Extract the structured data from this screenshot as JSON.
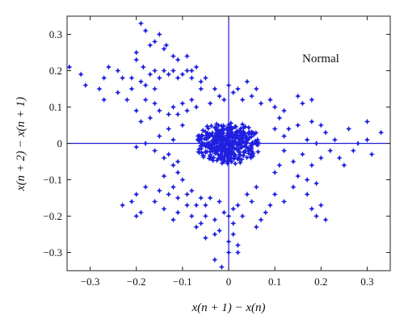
{
  "chart_data": {
    "type": "scatter",
    "title": "",
    "annotation": "Normal",
    "xlabel": "x(n + 1) − x(n)",
    "ylabel": "x(n + 2) − x(n + 1)",
    "xlim": [
      -0.35,
      0.35
    ],
    "ylim": [
      -0.35,
      0.35
    ],
    "xticks": [
      -0.3,
      -0.2,
      -0.1,
      0,
      0.1,
      0.2,
      0.3
    ],
    "xtick_labels": [
      "−0.3",
      "−0.2",
      "−0.1",
      "0",
      "0.1",
      "0.2",
      "0.3"
    ],
    "yticks": [
      -0.3,
      -0.2,
      -0.1,
      0,
      0.1,
      0.2,
      0.3
    ],
    "ytick_labels": [
      "−0.3",
      "−0.2",
      "−0.1",
      "0",
      "0.1",
      "0.2",
      "0.3"
    ],
    "grid": false,
    "reference_lines": {
      "x": 0,
      "y": 0
    },
    "marker": "star",
    "color": "#2020e0",
    "series": [
      {
        "points": [
          [
            -0.19,
            0.33
          ],
          [
            -0.18,
            0.31
          ],
          [
            -0.15,
            0.3
          ],
          [
            -0.16,
            0.28
          ],
          [
            -0.17,
            0.27
          ],
          [
            -0.135,
            0.27
          ],
          [
            -0.12,
            0.24
          ],
          [
            -0.14,
            0.26
          ],
          [
            -0.11,
            0.23
          ],
          [
            -0.2,
            0.25
          ],
          [
            -0.2,
            0.23
          ],
          [
            -0.185,
            0.21
          ],
          [
            -0.16,
            0.2
          ],
          [
            -0.17,
            0.19
          ],
          [
            -0.15,
            0.18
          ],
          [
            -0.14,
            0.2
          ],
          [
            -0.13,
            0.19
          ],
          [
            -0.12,
            0.2
          ],
          [
            -0.11,
            0.18
          ],
          [
            -0.1,
            0.19
          ],
          [
            -0.09,
            0.2
          ],
          [
            -0.08,
            0.2
          ],
          [
            -0.07,
            0.21
          ],
          [
            -0.08,
            0.18
          ],
          [
            -0.06,
            0.17
          ],
          [
            -0.05,
            0.18
          ],
          [
            -0.06,
            0.15
          ],
          [
            -0.19,
            0.17
          ],
          [
            -0.18,
            0.16
          ],
          [
            -0.16,
            0.15
          ],
          [
            -0.21,
            0.18
          ],
          [
            -0.09,
            0.24
          ],
          [
            -0.345,
            0.21
          ],
          [
            -0.32,
            0.19
          ],
          [
            -0.28,
            0.15
          ],
          [
            -0.26,
            0.21
          ],
          [
            -0.27,
            0.18
          ],
          [
            -0.31,
            0.16
          ],
          [
            -0.27,
            0.12
          ],
          [
            -0.24,
            0.2
          ],
          [
            -0.23,
            0.18
          ],
          [
            -0.24,
            0.14
          ],
          [
            -0.22,
            0.12
          ],
          [
            -0.21,
            0.15
          ],
          [
            -0.18,
            0.12
          ],
          [
            -0.16,
            0.11
          ],
          [
            -0.15,
            0.09
          ],
          [
            -0.17,
            0.07
          ],
          [
            -0.13,
            0.08
          ],
          [
            -0.12,
            0.1
          ],
          [
            -0.1,
            0.11
          ],
          [
            -0.11,
            0.08
          ],
          [
            -0.09,
            0.09
          ],
          [
            -0.08,
            0.12
          ],
          [
            -0.07,
            0.1
          ],
          [
            -0.19,
            0.06
          ],
          [
            -0.2,
            0.09
          ],
          [
            -0.03,
            0.15
          ],
          [
            -0.02,
            0.13
          ],
          [
            0.0,
            0.16
          ],
          [
            0.01,
            0.14
          ],
          [
            0.03,
            0.12
          ],
          [
            0.02,
            0.15
          ],
          [
            0.05,
            0.13
          ],
          [
            0.07,
            0.11
          ],
          [
            0.09,
            0.12
          ],
          [
            0.1,
            0.1
          ],
          [
            0.12,
            0.09
          ],
          [
            0.06,
            0.15
          ],
          [
            0.04,
            0.17
          ],
          [
            -0.04,
            0.11
          ],
          [
            -0.01,
            0.12
          ],
          [
            0.15,
            0.13
          ],
          [
            0.16,
            0.11
          ],
          [
            0.18,
            0.12
          ],
          [
            -0.18,
            0.0
          ],
          [
            -0.2,
            -0.01
          ],
          [
            -0.16,
            -0.02
          ],
          [
            -0.15,
            0.02
          ],
          [
            -0.14,
            -0.04
          ],
          [
            -0.12,
            0.01
          ],
          [
            -0.13,
            -0.03
          ],
          [
            0.13,
            0.04
          ],
          [
            0.15,
            0.05
          ],
          [
            0.18,
            0.06
          ],
          [
            0.2,
            0.05
          ],
          [
            0.21,
            0.03
          ],
          [
            0.17,
            0.01
          ],
          [
            0.19,
            0.0
          ],
          [
            0.22,
            -0.02
          ],
          [
            0.16,
            -0.03
          ],
          [
            0.14,
            -0.05
          ],
          [
            0.18,
            -0.06
          ],
          [
            0.2,
            -0.04
          ],
          [
            0.24,
            -0.04
          ],
          [
            0.25,
            -0.06
          ],
          [
            0.27,
            -0.02
          ],
          [
            0.28,
            0.0
          ],
          [
            0.3,
            0.01
          ],
          [
            0.31,
            -0.03
          ],
          [
            0.33,
            0.03
          ],
          [
            0.3,
            0.06
          ],
          [
            0.26,
            0.04
          ],
          [
            0.23,
            0.01
          ],
          [
            0.12,
            -0.02
          ],
          [
            0.15,
            -0.09
          ],
          [
            0.17,
            -0.1
          ],
          [
            0.19,
            -0.11
          ],
          [
            0.14,
            -0.12
          ],
          [
            -0.12,
            -0.06
          ],
          [
            -0.11,
            -0.08
          ],
          [
            -0.14,
            -0.09
          ],
          [
            -0.1,
            -0.1
          ],
          [
            -0.12,
            -0.12
          ],
          [
            -0.09,
            -0.14
          ],
          [
            -0.08,
            -0.13
          ],
          [
            -0.06,
            -0.15
          ],
          [
            -0.05,
            -0.17
          ],
          [
            -0.04,
            -0.15
          ],
          [
            -0.02,
            -0.16
          ],
          [
            -0.01,
            -0.19
          ],
          [
            0.0,
            -0.2
          ],
          [
            0.01,
            -0.18
          ],
          [
            0.02,
            -0.17
          ],
          [
            0.04,
            -0.14
          ],
          [
            0.05,
            -0.16
          ],
          [
            0.03,
            -0.2
          ],
          [
            0.01,
            -0.22
          ],
          [
            -0.03,
            -0.21
          ],
          [
            -0.05,
            -0.2
          ],
          [
            -0.07,
            -0.17
          ],
          [
            -0.09,
            -0.17
          ],
          [
            -0.11,
            -0.15
          ],
          [
            -0.13,
            -0.14
          ],
          [
            -0.15,
            -0.13
          ],
          [
            -0.18,
            -0.12
          ],
          [
            -0.2,
            -0.14
          ],
          [
            -0.21,
            -0.16
          ],
          [
            -0.19,
            -0.19
          ],
          [
            -0.2,
            -0.2
          ],
          [
            -0.23,
            -0.17
          ],
          [
            -0.16,
            -0.16
          ],
          [
            -0.14,
            -0.18
          ],
          [
            -0.12,
            -0.21
          ],
          [
            -0.11,
            -0.19
          ],
          [
            -0.08,
            -0.2
          ],
          [
            -0.07,
            -0.23
          ],
          [
            -0.05,
            -0.26
          ],
          [
            -0.03,
            -0.25
          ],
          [
            -0.02,
            -0.24
          ],
          [
            0.0,
            -0.27
          ],
          [
            0.01,
            -0.25
          ],
          [
            0.02,
            -0.28
          ],
          [
            0.0,
            -0.3
          ],
          [
            0.02,
            -0.3
          ],
          [
            -0.015,
            -0.34
          ],
          [
            0.015,
            -0.36
          ],
          [
            -0.03,
            -0.32
          ],
          [
            -0.06,
            -0.22
          ],
          [
            0.06,
            -0.23
          ],
          [
            0.07,
            -0.21
          ],
          [
            0.08,
            -0.19
          ],
          [
            0.09,
            -0.17
          ],
          [
            0.06,
            -0.12
          ],
          [
            0.18,
            -0.18
          ],
          [
            0.19,
            -0.2
          ],
          [
            0.21,
            -0.21
          ],
          [
            0.17,
            -0.14
          ],
          [
            0.2,
            -0.17
          ],
          [
            0.1,
            -0.14
          ],
          [
            0.12,
            -0.16
          ],
          [
            0.11,
            0.07
          ],
          [
            0.1,
            0.04
          ],
          [
            0.11,
            -0.06
          ],
          [
            0.1,
            -0.08
          ],
          [
            -0.1,
            0.05
          ],
          [
            -0.11,
            -0.05
          ],
          [
            0.12,
            0.02
          ],
          [
            -0.13,
            0.04
          ]
        ]
      }
    ],
    "core_cluster": {
      "center": [
        0.0,
        0.0
      ],
      "radius": [
        0.075,
        0.06
      ],
      "count": 420,
      "seed": 7
    }
  }
}
